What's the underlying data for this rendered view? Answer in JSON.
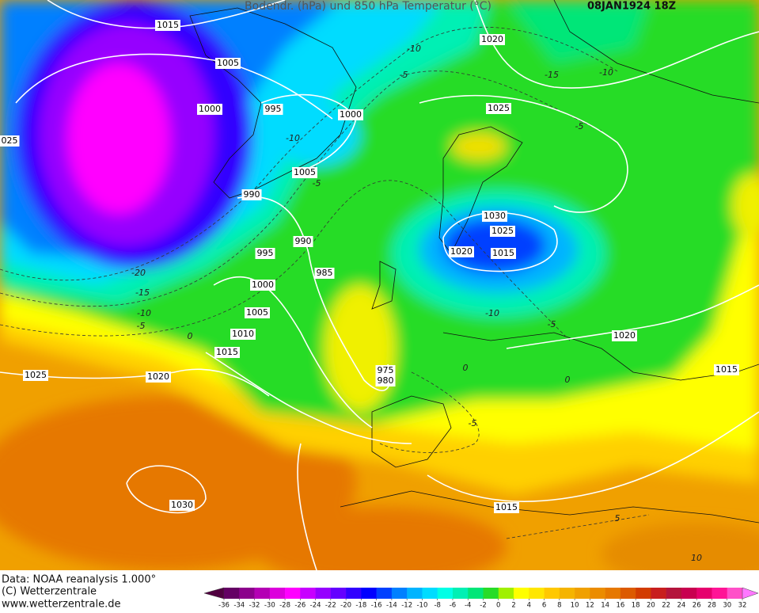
{
  "header": {
    "title": "Bodendr. (hPa) und 850 hPa Temperatur (°C)",
    "date": "08JAN1924 18Z"
  },
  "isobar_labels": [
    "1015",
    "1005",
    "1000",
    "995",
    "1000",
    "025",
    "1005",
    "990",
    "990",
    "995",
    "985",
    "1000",
    "1005",
    "1010",
    "1015",
    "1025",
    "1020",
    "975",
    "980",
    "1030",
    "1015",
    "1020",
    "1025",
    "1030",
    "1025",
    "1020",
    "1015",
    "1020",
    "1015"
  ],
  "temperature_labels": [
    "-10",
    "-5",
    "-15",
    "-10",
    "-5",
    "-10",
    "-5",
    "-20",
    "-15",
    "-10",
    "-5",
    "0",
    "-10",
    "-5",
    "0",
    "0",
    "-5",
    "5",
    "10"
  ],
  "footer": {
    "source": "Data: NOAA reanalysis 1.000°",
    "copyright": "(C) Wetterzentrale",
    "url": "www.wetterzentrale.de"
  },
  "colorbar": {
    "ticks": [
      -36,
      -34,
      -32,
      -30,
      -28,
      -26,
      -24,
      -22,
      -20,
      -18,
      -16,
      -14,
      -12,
      -10,
      -8,
      -6,
      -4,
      -2,
      0,
      2,
      4,
      6,
      8,
      10,
      12,
      14,
      16,
      18,
      20,
      22,
      24,
      26,
      28,
      30,
      32
    ],
    "colors": [
      "#500040",
      "#640064",
      "#8c008c",
      "#b400b4",
      "#dc00dc",
      "#ff00ff",
      "#c800ff",
      "#9600ff",
      "#6400ff",
      "#3200ff",
      "#0000ff",
      "#0040ff",
      "#0080ff",
      "#00b4ff",
      "#00dcff",
      "#00ffe6",
      "#00f0b4",
      "#00e678",
      "#28dc28",
      "#a0f000",
      "#ffff00",
      "#ffe600",
      "#ffc800",
      "#f5b400",
      "#f0a000",
      "#eb8c00",
      "#e67800",
      "#dc5a00",
      "#d23c00",
      "#c81e1e",
      "#b4143c",
      "#c80050",
      "#e6006e",
      "#ff1496",
      "#ff50c8",
      "#ff78ff"
    ]
  }
}
